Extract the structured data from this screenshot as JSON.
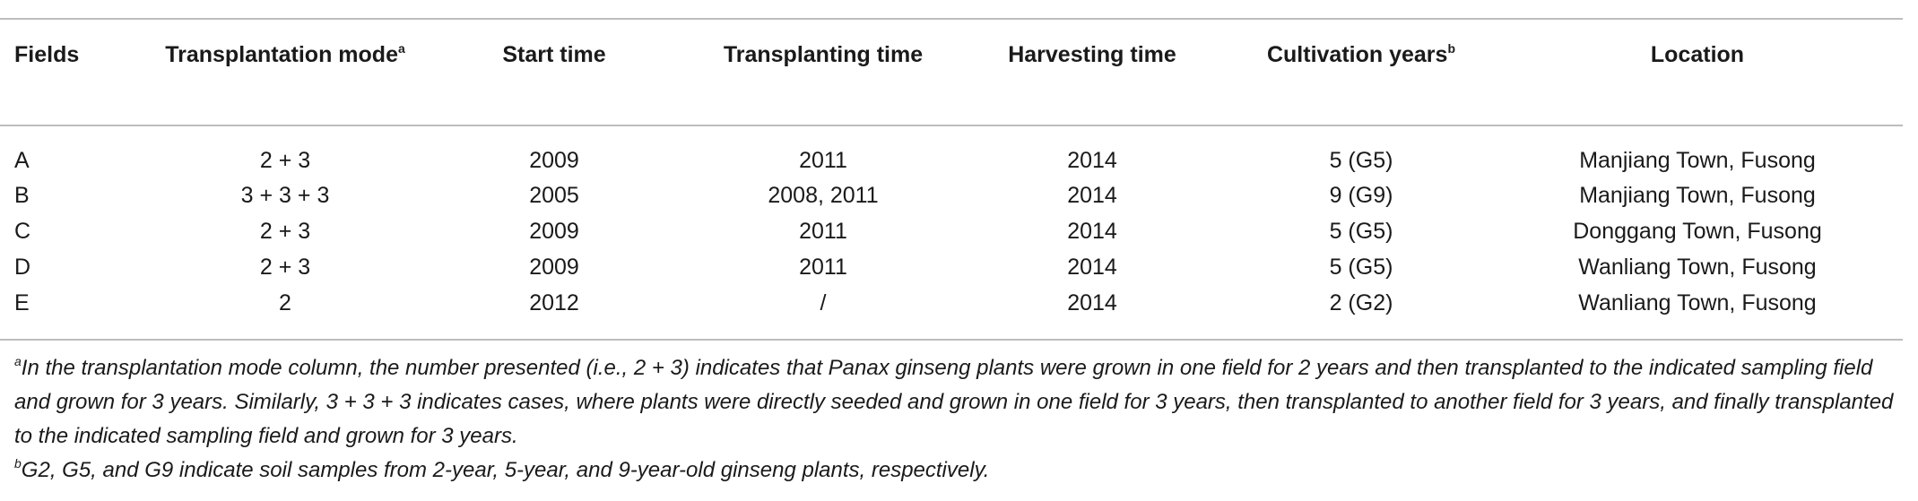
{
  "table": {
    "header": [
      {
        "text": "Fields"
      },
      {
        "text": "Transplantation mode",
        "note": "a"
      },
      {
        "text": "Start time"
      },
      {
        "text": "Transplanting time"
      },
      {
        "text": "Harvesting time"
      },
      {
        "text": "Cultivation years",
        "note": "b"
      },
      {
        "text": "Location"
      }
    ],
    "rows": [
      [
        "A",
        "2 + 3",
        "2009",
        "2011",
        "2014",
        "5 (G5)",
        "Manjiang Town, Fusong"
      ],
      [
        "B",
        "3 + 3 + 3",
        "2005",
        "2008, 2011",
        "2014",
        "9 (G9)",
        "Manjiang Town, Fusong"
      ],
      [
        "C",
        "2 + 3",
        "2009",
        "2011",
        "2014",
        "5 (G5)",
        "Donggang Town, Fusong"
      ],
      [
        "D",
        "2 + 3",
        "2009",
        "2011",
        "2014",
        "5 (G5)",
        "Wanliang Town, Fusong"
      ],
      [
        "E",
        "2",
        "2012",
        "/",
        "2014",
        "2 (G2)",
        "Wanliang Town, Fusong"
      ]
    ]
  },
  "footnotes": [
    {
      "mark": "a",
      "text": "In the transplantation mode column, the number presented (i.e., 2 + 3) indicates that Panax ginseng plants were grown in one field for 2 years and then transplanted to the indicated sampling field and grown for 3 years. Similarly, 3 + 3 + 3 indicates cases, where plants were directly seeded and grown in one field for 3 years, then transplanted to another field for 3 years, and finally transplanted to the indicated sampling field and grown for 3 years."
    },
    {
      "mark": "b",
      "text": "G2, G5, and G9 indicate soil samples from 2-year, 5-year, and 9-year-old ginseng plants, respectively."
    }
  ]
}
